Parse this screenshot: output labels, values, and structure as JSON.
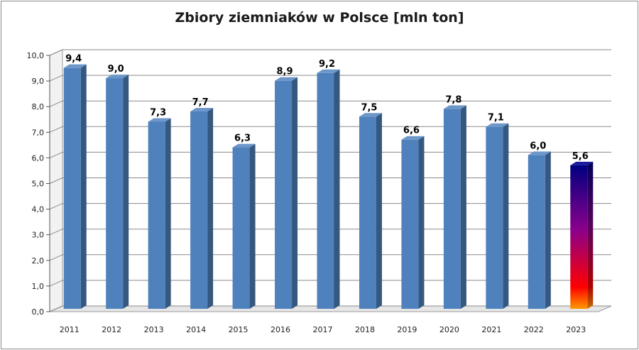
{
  "chart_data": {
    "type": "bar",
    "title": "Zbiory ziemniaków w Polsce [mln ton]",
    "xlabel": "",
    "ylabel": "",
    "categories": [
      "2011",
      "2012",
      "2013",
      "2014",
      "2015",
      "2016",
      "2017",
      "2018",
      "2019",
      "2020",
      "2021",
      "2022",
      "2023"
    ],
    "values": [
      9.4,
      9.0,
      7.3,
      7.7,
      6.3,
      8.9,
      9.2,
      7.5,
      6.6,
      7.8,
      7.1,
      6.0,
      5.6
    ],
    "data_labels": [
      "9,4",
      "9,0",
      "7,3",
      "7,7",
      "6,3",
      "8,9",
      "9,2",
      "7,5",
      "6,6",
      "7,8",
      "7,1",
      "6,0",
      "5,6"
    ],
    "yticks": [
      0,
      1,
      2,
      3,
      4,
      5,
      6,
      7,
      8,
      9,
      10
    ],
    "ytick_labels": [
      "0,0",
      "1,0",
      "2,0",
      "3,0",
      "4,0",
      "5,0",
      "6,0",
      "7,0",
      "8,0",
      "9,0",
      "10,0"
    ],
    "ylim": [
      0,
      10
    ],
    "grid": true,
    "legend": "none",
    "colors": {
      "bar": "#4f81bd",
      "highlight_top": "#000080",
      "highlight_mid": "#8b008b",
      "highlight_low": "#ff0000",
      "highlight_bottom": "#ff9900"
    },
    "highlight_category": "2023"
  }
}
